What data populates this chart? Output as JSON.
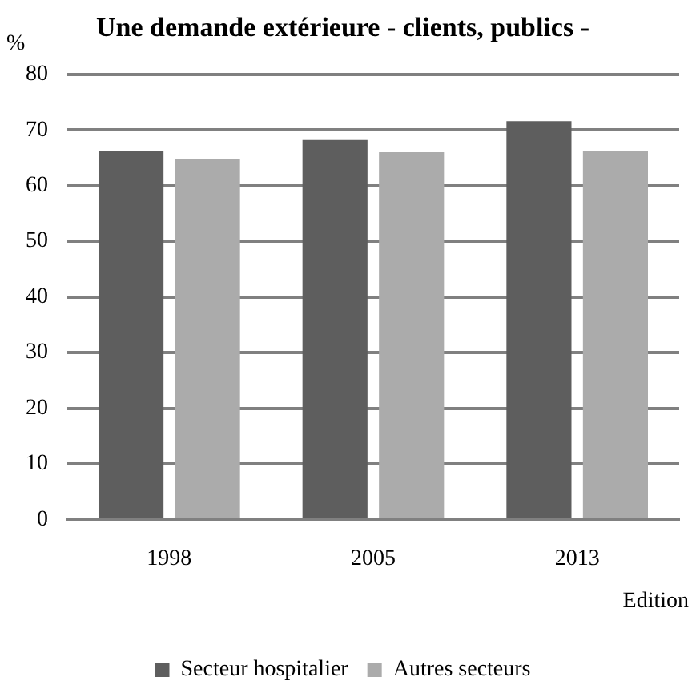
{
  "chart_data": {
    "type": "bar",
    "title": "Une demande extérieure - clients, publics -",
    "ylabel": "%",
    "xlabel": "Edition",
    "categories": [
      "1998",
      "2005",
      "2013"
    ],
    "series": [
      {
        "name": "Secteur hospitalier",
        "color": "#5e5e5e",
        "values": [
          66.3,
          68.2,
          71.6
        ]
      },
      {
        "name": "Autres secteurs",
        "color": "#ababab",
        "values": [
          64.7,
          66.0,
          66.3
        ]
      }
    ],
    "ylim": [
      0,
      80
    ],
    "yticks": [
      0,
      10,
      20,
      30,
      40,
      50,
      60,
      70,
      80
    ],
    "grid": "y",
    "legend": "bottom"
  }
}
